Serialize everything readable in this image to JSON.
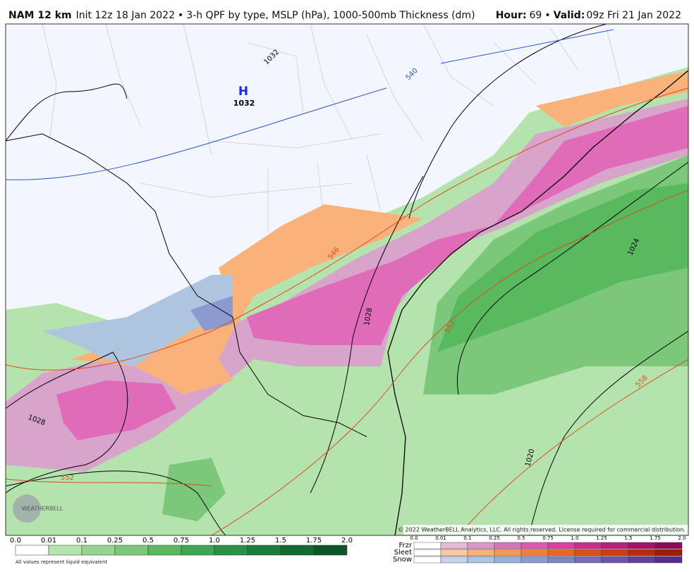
{
  "header": {
    "model": "NAM 12 km",
    "init": "Init 12z 18 Jan 2022",
    "separator": "•",
    "description": "3-h QPF by type, MSLP (hPa), 1000-500mb Thickness (dm)",
    "hour_label": "Hour:",
    "hour": "69",
    "valid_label": "Valid:",
    "valid": "09z Fri 21 Jan 2022"
  },
  "map": {
    "high_symbol": "H",
    "high_value": "1032",
    "isobar_labels": [
      "1032",
      "1028",
      "1028",
      "1024",
      "1020"
    ],
    "thickness_labels": [
      "540",
      "546",
      "552",
      "552",
      "558"
    ],
    "logo": "WEATHERBELL",
    "copyright": "© 2022 WeatherBELL Analytics, LLC. All rights reserved. License required for commercial distribution."
  },
  "rain_legend": {
    "ticks": [
      "0.0",
      "0.01",
      "0.1",
      "0.25",
      "0.5",
      "0.75",
      "1.0",
      "1.25",
      "1.5",
      "1.75",
      "2.0"
    ],
    "note": "All values represent liquid equivalent"
  },
  "type_legend": {
    "rows": [
      "Frzr",
      "Sleet",
      "Snow"
    ],
    "ticks": [
      "0.0",
      "0.01",
      "0.1",
      "0.25",
      "0.5",
      "0.75",
      "1.0",
      "1.25",
      "1.5",
      "1.75",
      "2.0"
    ]
  }
}
